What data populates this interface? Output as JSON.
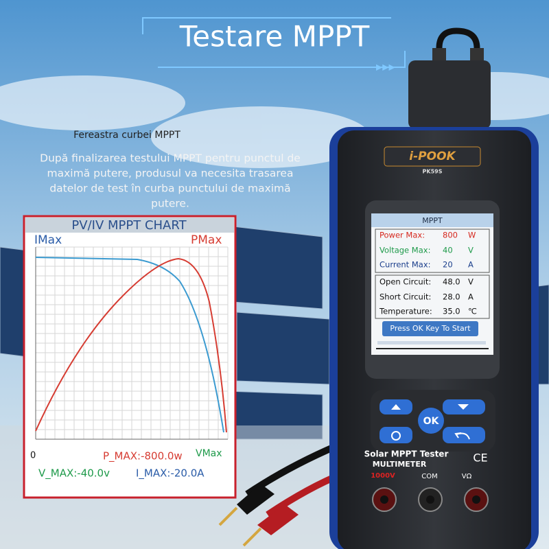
{
  "header": {
    "title": "Testare MPPT"
  },
  "caption": {
    "heading": "Fereastra curbei MPPT",
    "body_lines": [
      "După finalizarea testului MPPT pentru punctul de",
      "maximă putere, produsul va necesita trasarea",
      "datelor de test în curba punctului de maximă",
      "putere."
    ]
  },
  "chart_panel": {
    "title": "PV/IV MPPT CHART",
    "left_label": "IMax",
    "right_label": "PMax",
    "origin": "0",
    "x_label": "VMax",
    "p_max": "P_MAX:-800.0w",
    "v_max": "V_MAX:-40.0v",
    "i_max": "I_MAX:-20.0A"
  },
  "device": {
    "brand": "i-POOK",
    "model": "PK59S",
    "screen": {
      "title": "MPPT",
      "rows": [
        [
          "Power Max:",
          "800",
          "W"
        ],
        [
          "Voltage Max:",
          "40",
          "V"
        ],
        [
          "Current Max:",
          "20",
          "A"
        ],
        [
          "Open Circuit:",
          "48.0",
          "V"
        ],
        [
          "Short Circuit:",
          "28.0",
          "A"
        ],
        [
          "Temperature:",
          "35.0",
          "℃"
        ]
      ],
      "button": "Press OK Key To Start"
    },
    "ok_key": "OK",
    "label": "Solar MPPT Tester",
    "sublabel": "MULTIMETER",
    "mark": "CE",
    "terminals": [
      "1000V",
      "COM",
      "VΩ"
    ]
  }
}
